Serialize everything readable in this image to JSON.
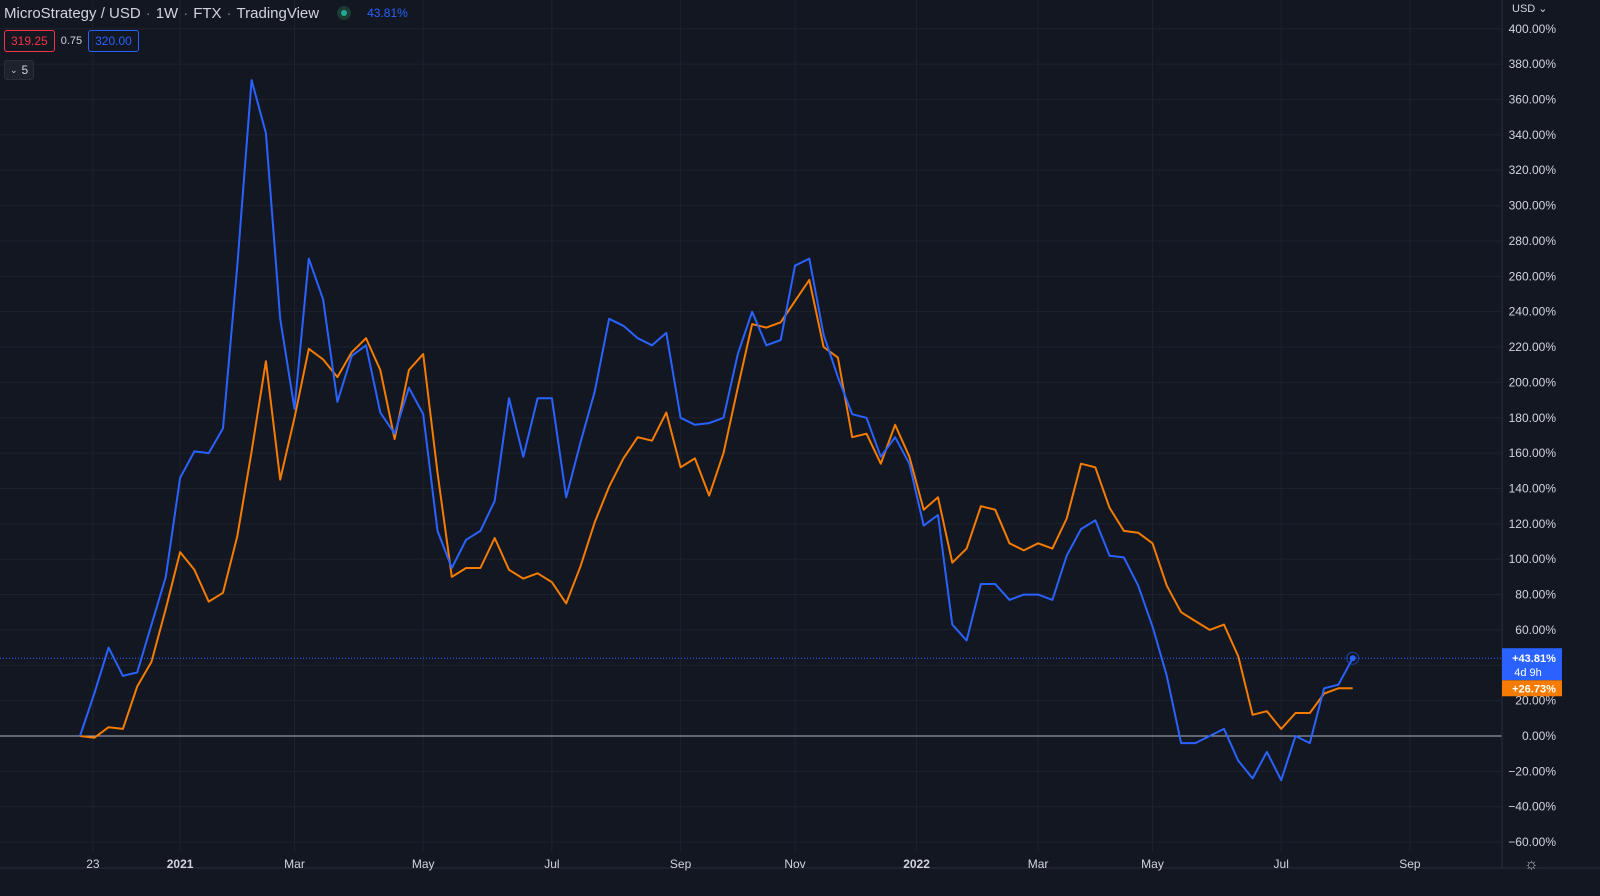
{
  "header": {
    "symbol": "MicroStrategy / USD",
    "interval": "1W",
    "exchange": "FTX",
    "source": "TradingView",
    "change_pct": "43.81%"
  },
  "quote": {
    "bid": "319.25",
    "spread": "0.75",
    "ask": "320.00"
  },
  "indicators_toggle": "5",
  "currency_menu": "USD",
  "colors": {
    "background": "#131722",
    "series_blue": "#2962ff",
    "series_orange": "#f57c00",
    "grid": "#1e222d",
    "axis_text": "#d1d4dc"
  },
  "chart_data": {
    "type": "line",
    "yunit": "%",
    "ylim": [
      -60,
      400
    ],
    "ytick_labels": [
      "400.00%",
      "380.00%",
      "360.00%",
      "340.00%",
      "320.00%",
      "300.00%",
      "280.00%",
      "260.00%",
      "240.00%",
      "220.00%",
      "200.00%",
      "180.00%",
      "160.00%",
      "140.00%",
      "120.00%",
      "100.00%",
      "80.00%",
      "60.00%",
      "40.00%",
      "20.00%",
      "0.00%",
      "−20.00%",
      "−40.00%",
      "−60.00%"
    ],
    "x_ticks": [
      "23",
      "2021",
      "Mar",
      "May",
      "Jul",
      "Sep",
      "Nov",
      "2022",
      "Mar",
      "May",
      "Jul",
      "Sep"
    ],
    "x_tick_weeks": [
      0.9,
      7,
      15,
      24,
      33,
      42,
      50,
      58.5,
      67,
      75,
      84,
      93
    ],
    "grid": true,
    "baseline": 0,
    "series": [
      {
        "color": "#2962ff",
        "last_label": "+43.81%",
        "countdown": "4d 9h",
        "values": [
          0,
          24,
          50,
          34,
          36,
          63,
          90,
          146,
          161,
          160,
          174,
          266,
          371,
          341,
          236,
          185,
          270,
          247,
          189,
          215,
          221,
          183,
          171,
          197,
          182,
          116,
          95,
          111,
          116,
          133,
          191,
          158,
          191,
          191,
          135,
          166,
          195,
          236,
          232,
          225,
          221,
          228,
          180,
          176,
          177,
          180,
          216,
          240,
          221,
          224,
          266,
          270,
          227,
          203,
          182,
          180,
          158,
          169,
          154,
          119,
          125,
          63,
          54,
          86,
          86,
          77,
          80,
          80,
          77,
          102,
          117,
          122,
          102,
          101,
          85,
          62,
          34,
          -4,
          -4,
          0,
          4,
          -14,
          -24,
          -9,
          -25,
          0,
          -4,
          27,
          29,
          44
        ]
      },
      {
        "color": "#f57c00",
        "last_label": "+26.73%",
        "values": [
          0,
          -1,
          5,
          4,
          28,
          42,
          72,
          104,
          94,
          76,
          81,
          113,
          161,
          212,
          145,
          180,
          219,
          213,
          203,
          217,
          225,
          207,
          168,
          207,
          216,
          149,
          90,
          95,
          95,
          112,
          94,
          89,
          92,
          87,
          75,
          96,
          121,
          141,
          157,
          169,
          167,
          183,
          152,
          157,
          136,
          160,
          197,
          233,
          231,
          234,
          246,
          258,
          220,
          214,
          169,
          171,
          154,
          176,
          158,
          128,
          135,
          98,
          106,
          130,
          128,
          109,
          105,
          109,
          106,
          123,
          154,
          152,
          129,
          116,
          115,
          109,
          85,
          70,
          65,
          60,
          63,
          45,
          12,
          14,
          4,
          13,
          13,
          24,
          27,
          27
        ]
      }
    ]
  }
}
